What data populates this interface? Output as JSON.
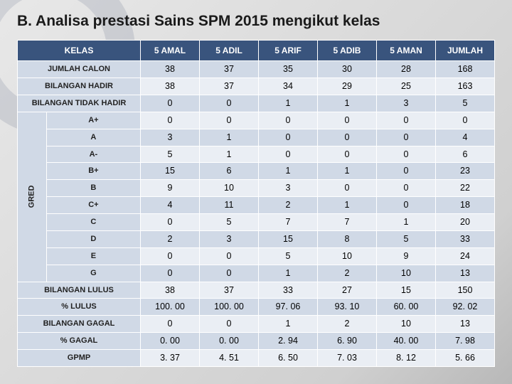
{
  "title": "B. Analisa prestasi Sains SPM 2015 mengikut kelas",
  "columns": [
    "KELAS",
    "5 AMAL",
    "5 ADIL",
    "5 ARIF",
    "5 ADIB",
    "5 AMAN",
    "JUMLAH"
  ],
  "gred_label": "GRED",
  "top_rows": [
    {
      "label": "JUMLAH CALON",
      "vals": [
        "38",
        "37",
        "35",
        "30",
        "28",
        "168"
      ]
    },
    {
      "label": "BILANGAN HADIR",
      "vals": [
        "38",
        "37",
        "34",
        "29",
        "25",
        "163"
      ]
    },
    {
      "label": "BILANGAN TIDAK HADIR",
      "vals": [
        "0",
        "0",
        "1",
        "1",
        "3",
        "5"
      ]
    }
  ],
  "grade_rows": [
    {
      "label": "A+",
      "vals": [
        "0",
        "0",
        "0",
        "0",
        "0",
        "0"
      ]
    },
    {
      "label": "A",
      "vals": [
        "3",
        "1",
        "0",
        "0",
        "0",
        "4"
      ]
    },
    {
      "label": "A-",
      "vals": [
        "5",
        "1",
        "0",
        "0",
        "0",
        "6"
      ]
    },
    {
      "label": "B+",
      "vals": [
        "15",
        "6",
        "1",
        "1",
        "0",
        "23"
      ]
    },
    {
      "label": "B",
      "vals": [
        "9",
        "10",
        "3",
        "0",
        "0",
        "22"
      ]
    },
    {
      "label": "C+",
      "vals": [
        "4",
        "11",
        "2",
        "1",
        "0",
        "18"
      ]
    },
    {
      "label": "C",
      "vals": [
        "0",
        "5",
        "7",
        "7",
        "1",
        "20"
      ]
    },
    {
      "label": "D",
      "vals": [
        "2",
        "3",
        "15",
        "8",
        "5",
        "33"
      ]
    },
    {
      "label": "E",
      "vals": [
        "0",
        "0",
        "5",
        "10",
        "9",
        "24"
      ]
    },
    {
      "label": "G",
      "vals": [
        "0",
        "0",
        "1",
        "2",
        "10",
        "13"
      ]
    }
  ],
  "bottom_rows": [
    {
      "label": "BILANGAN LULUS",
      "vals": [
        "38",
        "37",
        "33",
        "27",
        "15",
        "150"
      ]
    },
    {
      "label": "% LULUS",
      "vals": [
        "100. 00",
        "100. 00",
        "97. 06",
        "93. 10",
        "60. 00",
        "92. 02"
      ]
    },
    {
      "label": "BILANGAN GAGAL",
      "vals": [
        "0",
        "0",
        "1",
        "2",
        "10",
        "13"
      ]
    },
    {
      "label": "% GAGAL",
      "vals": [
        "0. 00",
        "0. 00",
        "2. 94",
        "6. 90",
        "40. 00",
        "7. 98"
      ]
    },
    {
      "label": "GPMP",
      "vals": [
        "3. 37",
        "4. 51",
        "6. 50",
        "7. 03",
        "8. 12",
        "5. 66"
      ]
    }
  ],
  "colors": {
    "header_bg": "#39547d",
    "header_fg": "#ffffff",
    "row_alt1": "#d0d9e6",
    "row_alt2": "#eaeef4"
  }
}
